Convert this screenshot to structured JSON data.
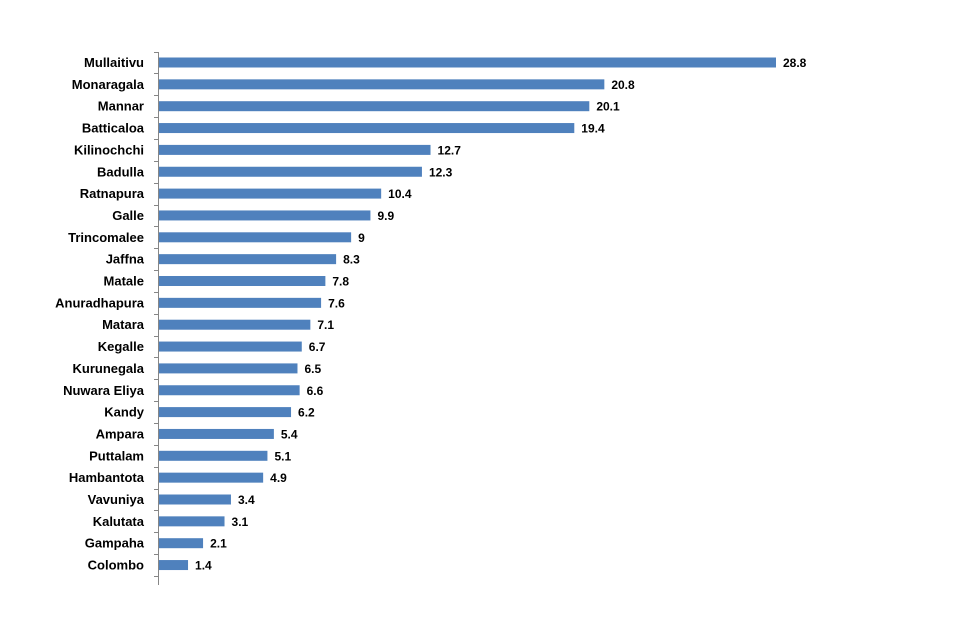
{
  "chart_data": {
    "type": "bar",
    "orientation": "horizontal",
    "title": "",
    "xlabel": "",
    "ylabel": "",
    "categories": [
      "Mullaitivu",
      "Monaragala",
      "Mannar",
      "Batticaloa",
      "Kilinochchi",
      "Badulla",
      "Ratnapura",
      "Galle",
      "Trincomalee",
      "Jaffna",
      "Matale",
      "Anuradhapura",
      "Matara",
      "Kegalle",
      "Kurunegala",
      "Nuwara Eliya",
      "Kandy",
      "Ampara",
      "Puttalam",
      "Hambantota",
      "Vavuniya",
      "Kalutata",
      "Gampaha",
      "Colombo"
    ],
    "values": [
      28.8,
      20.8,
      20.1,
      19.4,
      12.7,
      12.3,
      10.4,
      9.9,
      9,
      8.3,
      7.8,
      7.6,
      7.1,
      6.7,
      6.5,
      6.6,
      6.2,
      5.4,
      5.1,
      4.9,
      3.4,
      3.1,
      2.1,
      1.4
    ],
    "value_labels": [
      "28.8",
      "20.8",
      "20.1",
      "19.4",
      "12.7",
      "12.3",
      "10.4",
      "9.9",
      "9",
      "8.3",
      "7.8",
      "7.6",
      "7.1",
      "6.7",
      "6.5",
      "6.6",
      "6.2",
      "5.4",
      "5.1",
      "4.9",
      "3.4",
      "3.1",
      "2.1",
      "1.4"
    ],
    "xlim": [
      0,
      30
    ],
    "grid": false,
    "legend": "none",
    "bar_color": "#4F81BD",
    "axis_color": "#868686"
  }
}
